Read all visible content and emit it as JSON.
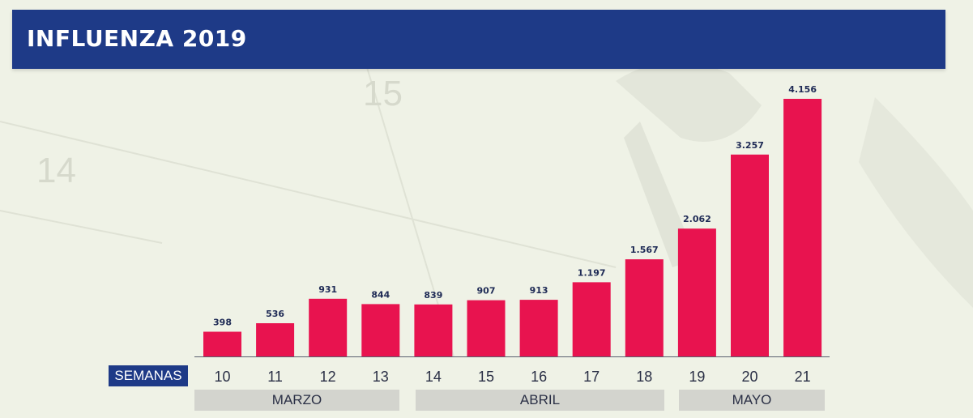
{
  "header": {
    "title": "INFLUENZA 2019"
  },
  "chart_data": {
    "type": "bar",
    "title": "INFLUENZA 2019",
    "x_axis_label": "SEMANAS",
    "categories": [
      "10",
      "11",
      "12",
      "13",
      "14",
      "15",
      "16",
      "17",
      "18",
      "19",
      "20",
      "21"
    ],
    "values": [
      398,
      536,
      931,
      844,
      839,
      907,
      913,
      1197,
      1567,
      2062,
      3257,
      4156
    ],
    "data_labels": [
      "398",
      "536",
      "931",
      "844",
      "839",
      "907",
      "913",
      "1.197",
      "1.567",
      "2.062",
      "3.257",
      "4.156"
    ],
    "ylim": [
      0,
      4156
    ],
    "grid": false,
    "bar_color": "#e8134f",
    "month_groups": [
      {
        "label": "MARZO",
        "weeks": [
          "10",
          "11",
          "12",
          "13"
        ]
      },
      {
        "label": "ABRIL",
        "weeks": [
          "14",
          "15",
          "16",
          "17",
          "18"
        ]
      },
      {
        "label": "MAYO",
        "weeks": [
          "19",
          "20",
          "21"
        ]
      }
    ]
  },
  "colors": {
    "header": "#1e3a87",
    "bar": "#e8134f",
    "month_band": "#d3d4ce",
    "background": "#eff2e6"
  }
}
